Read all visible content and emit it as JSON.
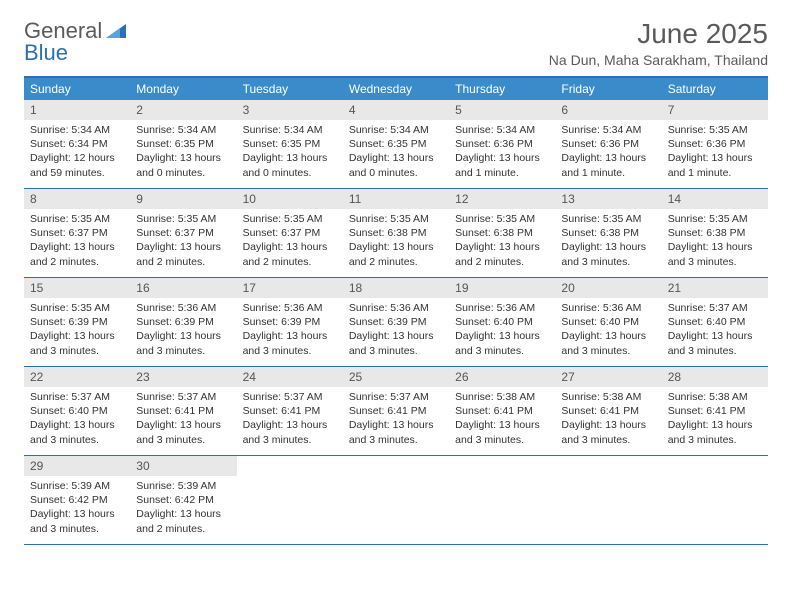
{
  "logo": {
    "part1": "General",
    "part2": "Blue"
  },
  "title": "June 2025",
  "location": "Na Dun, Maha Sarakham, Thailand",
  "colors": {
    "accent": "#2d6fb5",
    "header_bg": "#3a8bc9",
    "daynum_bg": "#e8e8e8",
    "text": "#333333"
  },
  "dayNames": [
    "Sunday",
    "Monday",
    "Tuesday",
    "Wednesday",
    "Thursday",
    "Friday",
    "Saturday"
  ],
  "weeks": [
    [
      {
        "n": "1",
        "sr": "Sunrise: 5:34 AM",
        "ss": "Sunset: 6:34 PM",
        "dl": "Daylight: 12 hours and 59 minutes."
      },
      {
        "n": "2",
        "sr": "Sunrise: 5:34 AM",
        "ss": "Sunset: 6:35 PM",
        "dl": "Daylight: 13 hours and 0 minutes."
      },
      {
        "n": "3",
        "sr": "Sunrise: 5:34 AM",
        "ss": "Sunset: 6:35 PM",
        "dl": "Daylight: 13 hours and 0 minutes."
      },
      {
        "n": "4",
        "sr": "Sunrise: 5:34 AM",
        "ss": "Sunset: 6:35 PM",
        "dl": "Daylight: 13 hours and 0 minutes."
      },
      {
        "n": "5",
        "sr": "Sunrise: 5:34 AM",
        "ss": "Sunset: 6:36 PM",
        "dl": "Daylight: 13 hours and 1 minute."
      },
      {
        "n": "6",
        "sr": "Sunrise: 5:34 AM",
        "ss": "Sunset: 6:36 PM",
        "dl": "Daylight: 13 hours and 1 minute."
      },
      {
        "n": "7",
        "sr": "Sunrise: 5:35 AM",
        "ss": "Sunset: 6:36 PM",
        "dl": "Daylight: 13 hours and 1 minute."
      }
    ],
    [
      {
        "n": "8",
        "sr": "Sunrise: 5:35 AM",
        "ss": "Sunset: 6:37 PM",
        "dl": "Daylight: 13 hours and 2 minutes."
      },
      {
        "n": "9",
        "sr": "Sunrise: 5:35 AM",
        "ss": "Sunset: 6:37 PM",
        "dl": "Daylight: 13 hours and 2 minutes."
      },
      {
        "n": "10",
        "sr": "Sunrise: 5:35 AM",
        "ss": "Sunset: 6:37 PM",
        "dl": "Daylight: 13 hours and 2 minutes."
      },
      {
        "n": "11",
        "sr": "Sunrise: 5:35 AM",
        "ss": "Sunset: 6:38 PM",
        "dl": "Daylight: 13 hours and 2 minutes."
      },
      {
        "n": "12",
        "sr": "Sunrise: 5:35 AM",
        "ss": "Sunset: 6:38 PM",
        "dl": "Daylight: 13 hours and 2 minutes."
      },
      {
        "n": "13",
        "sr": "Sunrise: 5:35 AM",
        "ss": "Sunset: 6:38 PM",
        "dl": "Daylight: 13 hours and 3 minutes."
      },
      {
        "n": "14",
        "sr": "Sunrise: 5:35 AM",
        "ss": "Sunset: 6:38 PM",
        "dl": "Daylight: 13 hours and 3 minutes."
      }
    ],
    [
      {
        "n": "15",
        "sr": "Sunrise: 5:35 AM",
        "ss": "Sunset: 6:39 PM",
        "dl": "Daylight: 13 hours and 3 minutes."
      },
      {
        "n": "16",
        "sr": "Sunrise: 5:36 AM",
        "ss": "Sunset: 6:39 PM",
        "dl": "Daylight: 13 hours and 3 minutes."
      },
      {
        "n": "17",
        "sr": "Sunrise: 5:36 AM",
        "ss": "Sunset: 6:39 PM",
        "dl": "Daylight: 13 hours and 3 minutes."
      },
      {
        "n": "18",
        "sr": "Sunrise: 5:36 AM",
        "ss": "Sunset: 6:39 PM",
        "dl": "Daylight: 13 hours and 3 minutes."
      },
      {
        "n": "19",
        "sr": "Sunrise: 5:36 AM",
        "ss": "Sunset: 6:40 PM",
        "dl": "Daylight: 13 hours and 3 minutes."
      },
      {
        "n": "20",
        "sr": "Sunrise: 5:36 AM",
        "ss": "Sunset: 6:40 PM",
        "dl": "Daylight: 13 hours and 3 minutes."
      },
      {
        "n": "21",
        "sr": "Sunrise: 5:37 AM",
        "ss": "Sunset: 6:40 PM",
        "dl": "Daylight: 13 hours and 3 minutes."
      }
    ],
    [
      {
        "n": "22",
        "sr": "Sunrise: 5:37 AM",
        "ss": "Sunset: 6:40 PM",
        "dl": "Daylight: 13 hours and 3 minutes."
      },
      {
        "n": "23",
        "sr": "Sunrise: 5:37 AM",
        "ss": "Sunset: 6:41 PM",
        "dl": "Daylight: 13 hours and 3 minutes."
      },
      {
        "n": "24",
        "sr": "Sunrise: 5:37 AM",
        "ss": "Sunset: 6:41 PM",
        "dl": "Daylight: 13 hours and 3 minutes."
      },
      {
        "n": "25",
        "sr": "Sunrise: 5:37 AM",
        "ss": "Sunset: 6:41 PM",
        "dl": "Daylight: 13 hours and 3 minutes."
      },
      {
        "n": "26",
        "sr": "Sunrise: 5:38 AM",
        "ss": "Sunset: 6:41 PM",
        "dl": "Daylight: 13 hours and 3 minutes."
      },
      {
        "n": "27",
        "sr": "Sunrise: 5:38 AM",
        "ss": "Sunset: 6:41 PM",
        "dl": "Daylight: 13 hours and 3 minutes."
      },
      {
        "n": "28",
        "sr": "Sunrise: 5:38 AM",
        "ss": "Sunset: 6:41 PM",
        "dl": "Daylight: 13 hours and 3 minutes."
      }
    ],
    [
      {
        "n": "29",
        "sr": "Sunrise: 5:39 AM",
        "ss": "Sunset: 6:42 PM",
        "dl": "Daylight: 13 hours and 3 minutes."
      },
      {
        "n": "30",
        "sr": "Sunrise: 5:39 AM",
        "ss": "Sunset: 6:42 PM",
        "dl": "Daylight: 13 hours and 2 minutes."
      },
      null,
      null,
      null,
      null,
      null
    ]
  ]
}
